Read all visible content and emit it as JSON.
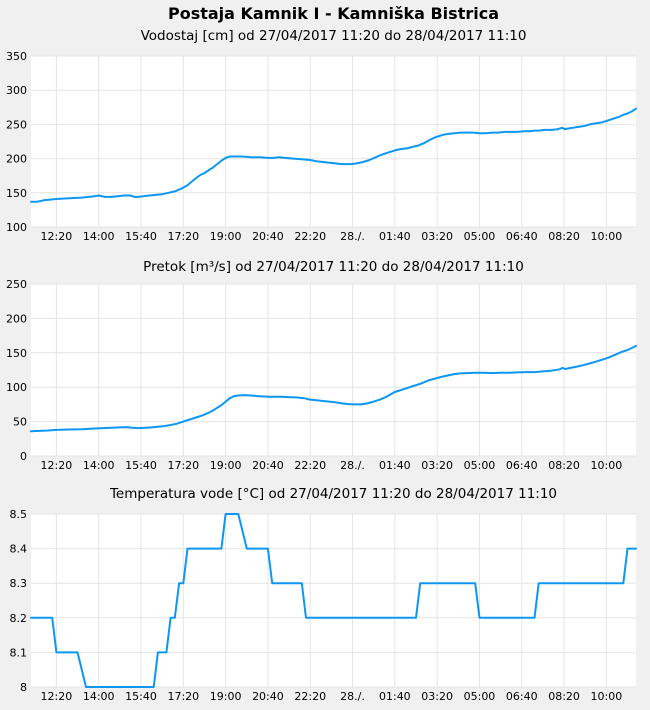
{
  "title": "Postaja Kamnik I - Kamniška Bistrica",
  "colors": {
    "background": "#f0f0f0",
    "plot_background": "#ffffff",
    "grid": "#e4e4e4",
    "line": "#0d97f2",
    "text": "#000000"
  },
  "x_axis": {
    "start": "27/04/2017 11:20",
    "end": "28/04/2017 11:10",
    "total_minutes": 1430,
    "ticks": [
      {
        "t": 60,
        "label": "12:20"
      },
      {
        "t": 160,
        "label": "14:00"
      },
      {
        "t": 260,
        "label": "15:40"
      },
      {
        "t": 360,
        "label": "17:20"
      },
      {
        "t": 460,
        "label": "19:00"
      },
      {
        "t": 560,
        "label": "20:40"
      },
      {
        "t": 660,
        "label": "22:20"
      },
      {
        "t": 760,
        "label": "28./."
      },
      {
        "t": 860,
        "label": "01:40"
      },
      {
        "t": 960,
        "label": "03:20"
      },
      {
        "t": 1060,
        "label": "05:00"
      },
      {
        "t": 1160,
        "label": "06:40"
      },
      {
        "t": 1260,
        "label": "08:20"
      },
      {
        "t": 1360,
        "label": "10:00"
      }
    ]
  },
  "chart_data": [
    {
      "type": "line",
      "title": "Vodostaj [cm] od 27/04/2017 11:20 do 28/04/2017 11:10",
      "ylabel": "Vodostaj [cm]",
      "ylim": [
        100,
        350
      ],
      "yticks": [
        100,
        150,
        200,
        250,
        300,
        350
      ],
      "ytick_labels": [
        "100",
        "150",
        "200",
        "250",
        "300",
        "350"
      ],
      "grid": true,
      "points": [
        [
          0,
          137
        ],
        [
          15,
          137
        ],
        [
          30,
          139
        ],
        [
          60,
          141
        ],
        [
          90,
          142
        ],
        [
          120,
          143
        ],
        [
          150,
          145
        ],
        [
          160,
          146
        ],
        [
          175,
          144
        ],
        [
          190,
          144
        ],
        [
          205,
          145
        ],
        [
          220,
          146
        ],
        [
          235,
          146
        ],
        [
          245,
          144
        ],
        [
          255,
          144
        ],
        [
          265,
          145
        ],
        [
          280,
          146
        ],
        [
          295,
          147
        ],
        [
          310,
          148
        ],
        [
          325,
          150
        ],
        [
          340,
          152
        ],
        [
          355,
          156
        ],
        [
          370,
          161
        ],
        [
          385,
          169
        ],
        [
          400,
          176
        ],
        [
          410,
          179
        ],
        [
          420,
          183
        ],
        [
          430,
          187
        ],
        [
          440,
          192
        ],
        [
          450,
          197
        ],
        [
          460,
          201
        ],
        [
          470,
          203
        ],
        [
          485,
          203
        ],
        [
          500,
          203
        ],
        [
          520,
          202
        ],
        [
          540,
          202
        ],
        [
          560,
          201
        ],
        [
          575,
          201
        ],
        [
          585,
          202
        ],
        [
          600,
          201
        ],
        [
          620,
          200
        ],
        [
          640,
          199
        ],
        [
          660,
          198
        ],
        [
          675,
          196
        ],
        [
          690,
          195
        ],
        [
          705,
          194
        ],
        [
          720,
          193
        ],
        [
          735,
          192
        ],
        [
          755,
          192
        ],
        [
          770,
          193
        ],
        [
          785,
          195
        ],
        [
          800,
          198
        ],
        [
          815,
          202
        ],
        [
          830,
          206
        ],
        [
          845,
          209
        ],
        [
          860,
          212
        ],
        [
          875,
          214
        ],
        [
          890,
          215
        ],
        [
          900,
          217
        ],
        [
          915,
          219
        ],
        [
          930,
          223
        ],
        [
          945,
          228
        ],
        [
          955,
          231
        ],
        [
          965,
          233
        ],
        [
          975,
          235
        ],
        [
          985,
          236
        ],
        [
          1000,
          237
        ],
        [
          1015,
          238
        ],
        [
          1030,
          238
        ],
        [
          1045,
          238
        ],
        [
          1060,
          237
        ],
        [
          1075,
          237
        ],
        [
          1090,
          238
        ],
        [
          1105,
          238
        ],
        [
          1120,
          239
        ],
        [
          1135,
          239
        ],
        [
          1150,
          239
        ],
        [
          1165,
          240
        ],
        [
          1180,
          240
        ],
        [
          1190,
          241
        ],
        [
          1200,
          241
        ],
        [
          1215,
          242
        ],
        [
          1230,
          242
        ],
        [
          1245,
          243
        ],
        [
          1255,
          245
        ],
        [
          1262,
          243
        ],
        [
          1270,
          244
        ],
        [
          1280,
          245
        ],
        [
          1290,
          246
        ],
        [
          1300,
          247
        ],
        [
          1310,
          248
        ],
        [
          1320,
          250
        ],
        [
          1330,
          251
        ],
        [
          1340,
          252
        ],
        [
          1350,
          253
        ],
        [
          1360,
          255
        ],
        [
          1370,
          257
        ],
        [
          1380,
          259
        ],
        [
          1390,
          261
        ],
        [
          1400,
          264
        ],
        [
          1410,
          266
        ],
        [
          1420,
          269
        ],
        [
          1430,
          273
        ]
      ]
    },
    {
      "type": "line",
      "title": "Pretok [m³/s] od 27/04/2017 11:20 do 28/04/2017 11:10",
      "ylabel": "Pretok [m³/s]",
      "ylim": [
        0,
        250
      ],
      "yticks": [
        0,
        50,
        100,
        150,
        200,
        250
      ],
      "ytick_labels": [
        "0",
        "50",
        "100",
        "150",
        "200",
        "250"
      ],
      "grid": true,
      "points": [
        [
          0,
          36
        ],
        [
          20,
          36.5
        ],
        [
          40,
          37
        ],
        [
          60,
          38
        ],
        [
          90,
          38.5
        ],
        [
          120,
          39
        ],
        [
          150,
          40
        ],
        [
          170,
          40.5
        ],
        [
          190,
          41
        ],
        [
          210,
          41.5
        ],
        [
          225,
          42
        ],
        [
          240,
          41
        ],
        [
          255,
          40.5
        ],
        [
          270,
          41
        ],
        [
          285,
          41.5
        ],
        [
          300,
          42.5
        ],
        [
          315,
          43.5
        ],
        [
          330,
          45
        ],
        [
          345,
          47
        ],
        [
          360,
          50
        ],
        [
          375,
          53
        ],
        [
          390,
          56
        ],
        [
          405,
          59
        ],
        [
          420,
          63
        ],
        [
          435,
          68
        ],
        [
          450,
          74
        ],
        [
          460,
          79
        ],
        [
          470,
          84
        ],
        [
          480,
          87
        ],
        [
          490,
          88
        ],
        [
          505,
          88.5
        ],
        [
          520,
          88
        ],
        [
          535,
          87
        ],
        [
          550,
          86.5
        ],
        [
          565,
          86
        ],
        [
          590,
          86
        ],
        [
          615,
          85.5
        ],
        [
          630,
          85
        ],
        [
          645,
          84
        ],
        [
          660,
          82
        ],
        [
          675,
          81
        ],
        [
          690,
          80
        ],
        [
          705,
          79
        ],
        [
          720,
          78
        ],
        [
          735,
          76.5
        ],
        [
          750,
          75.5
        ],
        [
          765,
          75
        ],
        [
          780,
          75
        ],
        [
          795,
          76.5
        ],
        [
          810,
          79
        ],
        [
          825,
          82
        ],
        [
          840,
          86
        ],
        [
          860,
          93
        ],
        [
          880,
          97
        ],
        [
          900,
          101
        ],
        [
          920,
          105
        ],
        [
          940,
          110
        ],
        [
          955,
          112.5
        ],
        [
          970,
          115
        ],
        [
          985,
          117
        ],
        [
          1000,
          119
        ],
        [
          1015,
          120
        ],
        [
          1030,
          120.5
        ],
        [
          1050,
          121
        ],
        [
          1070,
          121
        ],
        [
          1090,
          120.5
        ],
        [
          1110,
          121
        ],
        [
          1130,
          121
        ],
        [
          1150,
          121.5
        ],
        [
          1170,
          122
        ],
        [
          1190,
          122
        ],
        [
          1210,
          123
        ],
        [
          1230,
          124
        ],
        [
          1250,
          126
        ],
        [
          1256,
          128
        ],
        [
          1263,
          126.5
        ],
        [
          1275,
          128
        ],
        [
          1290,
          130
        ],
        [
          1305,
          132
        ],
        [
          1320,
          134.5
        ],
        [
          1335,
          137
        ],
        [
          1350,
          140
        ],
        [
          1365,
          143
        ],
        [
          1380,
          147
        ],
        [
          1395,
          151
        ],
        [
          1410,
          154
        ],
        [
          1420,
          157
        ],
        [
          1430,
          160
        ]
      ]
    },
    {
      "type": "line",
      "title": "Temperatura vode [°C] od 27/04/2017 11:20 do 28/04/2017 11:10",
      "ylabel": "Temperatura vode [°C]",
      "ylim": [
        8,
        8.5
      ],
      "yticks": [
        8,
        8.1,
        8.2,
        8.3,
        8.4,
        8.5
      ],
      "ytick_labels": [
        "8",
        "8.1",
        "8.2",
        "8.3",
        "8.4",
        "8.5"
      ],
      "grid": true,
      "segments": [
        [
          0,
          50,
          8.2
        ],
        [
          60,
          110,
          8.1
        ],
        [
          130,
          290,
          8.0
        ],
        [
          300,
          320,
          8.1
        ],
        [
          330,
          340,
          8.2
        ],
        [
          350,
          360,
          8.3
        ],
        [
          370,
          450,
          8.4
        ],
        [
          460,
          490,
          8.5
        ],
        [
          510,
          560,
          8.4
        ],
        [
          570,
          640,
          8.3
        ],
        [
          650,
          910,
          8.2
        ],
        [
          920,
          1050,
          8.3
        ],
        [
          1060,
          1190,
          8.2
        ],
        [
          1200,
          1400,
          8.3
        ],
        [
          1410,
          1430,
          8.4
        ]
      ]
    }
  ]
}
